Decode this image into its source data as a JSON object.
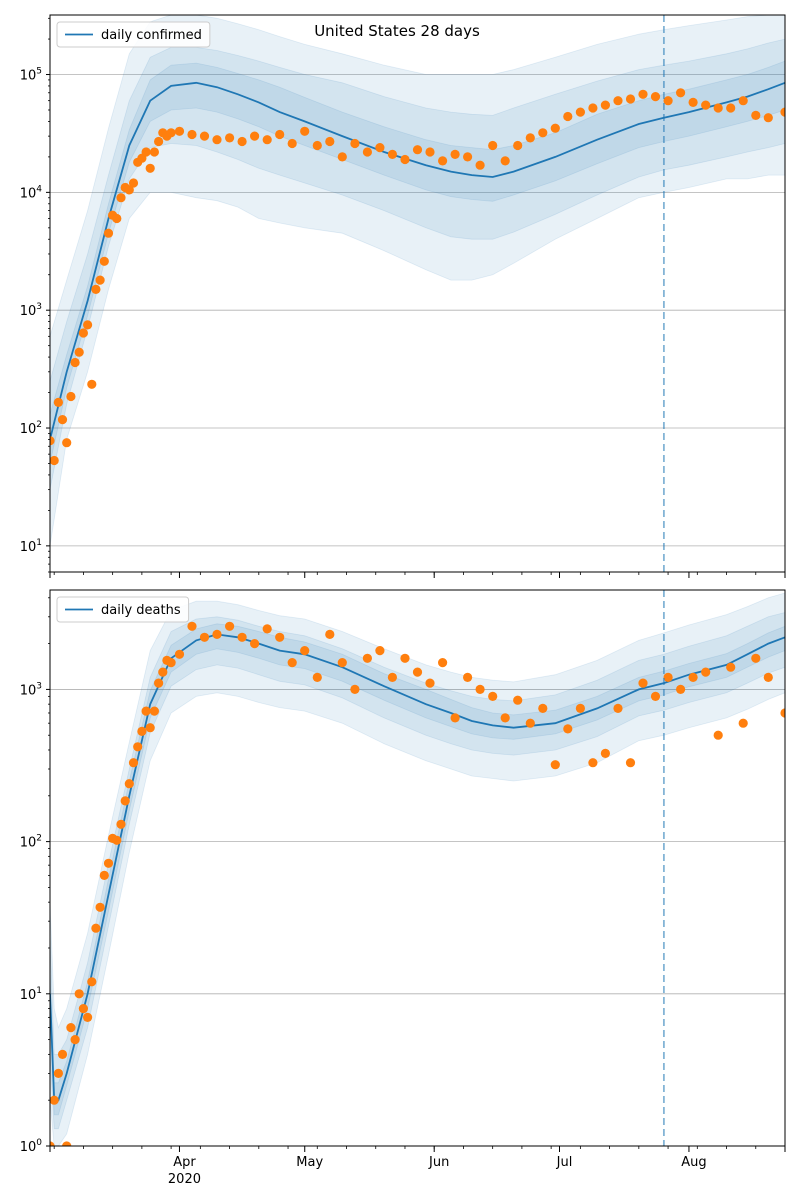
{
  "figure": {
    "title": "United States 28 days"
  },
  "chart_data": [
    {
      "type": "line",
      "name": "daily-confirmed",
      "y_scale": "log",
      "ylim": [
        6,
        320000
      ],
      "xlim": [
        "2020-03-01",
        "2020-08-24"
      ],
      "grid": "y-major",
      "legend": {
        "location": "top-left",
        "entries": [
          "daily confirmed"
        ]
      },
      "y_ticks": [
        {
          "value": 10,
          "base": "10",
          "exp": "1"
        },
        {
          "value": 100,
          "base": "10",
          "exp": "2"
        },
        {
          "value": 1000,
          "base": "10",
          "exp": "3"
        },
        {
          "value": 10000,
          "base": "10",
          "exp": "4"
        },
        {
          "value": 100000,
          "base": "10",
          "exp": "5"
        }
      ],
      "forecast_start": "2020-07-26",
      "fit": {
        "x": [
          "2020-03-01",
          "2020-03-05",
          "2020-03-10",
          "2020-03-15",
          "2020-03-20",
          "2020-03-25",
          "2020-03-30",
          "2020-04-05",
          "2020-04-10",
          "2020-04-15",
          "2020-04-20",
          "2020-04-25",
          "2020-05-01",
          "2020-05-10",
          "2020-05-20",
          "2020-05-30",
          "2020-06-05",
          "2020-06-10",
          "2020-06-15",
          "2020-06-20",
          "2020-06-30",
          "2020-07-10",
          "2020-07-20",
          "2020-07-26",
          "2020-08-01",
          "2020-08-10",
          "2020-08-15",
          "2020-08-20",
          "2020-08-24"
        ],
        "y": [
          80,
          300,
          1200,
          6000,
          25000,
          60000,
          80000,
          85000,
          78000,
          68000,
          58000,
          48000,
          40000,
          30000,
          22000,
          17000,
          15000,
          14000,
          13500,
          15000,
          20000,
          28000,
          38000,
          43000,
          48000,
          58000,
          65000,
          75000,
          85000
        ]
      },
      "band_outer": {
        "lower": [
          10,
          80,
          300,
          1500,
          6000,
          10000,
          10000,
          9000,
          8500,
          7500,
          6000,
          5500,
          5000,
          4500,
          3200,
          2200,
          1800,
          1800,
          2000,
          2500,
          4000,
          6000,
          9000,
          10000,
          11000,
          13000,
          13000,
          14000,
          14000
        ],
        "upper": [
          600,
          1800,
          7000,
          35000,
          150000,
          280000,
          320000,
          320000,
          300000,
          270000,
          240000,
          210000,
          180000,
          150000,
          120000,
          100000,
          100000,
          100000,
          100000,
          110000,
          140000,
          180000,
          220000,
          240000,
          260000,
          290000,
          310000,
          320000,
          320000
        ]
      },
      "band_middle": {
        "lower": [
          30,
          160,
          700,
          3500,
          13000,
          24000,
          26000,
          25000,
          22000,
          19000,
          16000,
          14000,
          12000,
          9500,
          7000,
          5000,
          4200,
          4000,
          4000,
          4600,
          6500,
          9500,
          13500,
          15500,
          17000,
          20000,
          22000,
          24000,
          26000
        ],
        "upper": [
          250,
          800,
          3000,
          14000,
          60000,
          140000,
          170000,
          170000,
          160000,
          145000,
          130000,
          115000,
          100000,
          85000,
          65000,
          52000,
          48000,
          46000,
          45000,
          52000,
          68000,
          88000,
          110000,
          120000,
          130000,
          150000,
          165000,
          185000,
          200000
        ]
      },
      "band_inner": {
        "lower": [
          50,
          220,
          900,
          4500,
          18000,
          40000,
          50000,
          52000,
          48000,
          42000,
          36000,
          30000,
          25000,
          19000,
          14000,
          10500,
          9200,
          8700,
          8400,
          9500,
          12500,
          17500,
          24000,
          27000,
          30000,
          36000,
          40000,
          45000,
          50000
        ],
        "upper": [
          130,
          420,
          1600,
          8000,
          34000,
          90000,
          120000,
          125000,
          115000,
          102000,
          90000,
          78000,
          64000,
          48000,
          36000,
          28000,
          25000,
          24000,
          23000,
          25000,
          32000,
          46000,
          60000,
          68000,
          75000,
          90000,
          100000,
          115000,
          130000
        ]
      },
      "observed": {
        "x": [
          "2020-03-01",
          "2020-03-02",
          "2020-03-03",
          "2020-03-04",
          "2020-03-05",
          "2020-03-06",
          "2020-03-07",
          "2020-03-08",
          "2020-03-09",
          "2020-03-10",
          "2020-03-11",
          "2020-03-12",
          "2020-03-13",
          "2020-03-14",
          "2020-03-15",
          "2020-03-16",
          "2020-03-17",
          "2020-03-18",
          "2020-03-19",
          "2020-03-20",
          "2020-03-21",
          "2020-03-22",
          "2020-03-23",
          "2020-03-24",
          "2020-03-25",
          "2020-03-26",
          "2020-03-27",
          "2020-03-28",
          "2020-03-29",
          "2020-03-30",
          "2020-04-01",
          "2020-04-04",
          "2020-04-07",
          "2020-04-10",
          "2020-04-13",
          "2020-04-16",
          "2020-04-19",
          "2020-04-22",
          "2020-04-25",
          "2020-04-28",
          "2020-05-01",
          "2020-05-04",
          "2020-05-07",
          "2020-05-10",
          "2020-05-13",
          "2020-05-16",
          "2020-05-19",
          "2020-05-22",
          "2020-05-25",
          "2020-05-28",
          "2020-05-31",
          "2020-06-03",
          "2020-06-06",
          "2020-06-09",
          "2020-06-12",
          "2020-06-15",
          "2020-06-18",
          "2020-06-21",
          "2020-06-24",
          "2020-06-27",
          "2020-06-30",
          "2020-07-03",
          "2020-07-06",
          "2020-07-09",
          "2020-07-12",
          "2020-07-15",
          "2020-07-18",
          "2020-07-21",
          "2020-07-24",
          "2020-07-27",
          "2020-07-30",
          "2020-08-02",
          "2020-08-05",
          "2020-08-08",
          "2020-08-11",
          "2020-08-14",
          "2020-08-17",
          "2020-08-20",
          "2020-08-24"
        ],
        "y": [
          78,
          53,
          165,
          118,
          75,
          185,
          360,
          440,
          640,
          750,
          235,
          1500,
          1800,
          2600,
          4500,
          6400,
          6000,
          9000,
          11000,
          10500,
          12000,
          18000,
          19500,
          22000,
          16000,
          22000,
          27000,
          32000,
          30000,
          32000,
          33000,
          31000,
          30000,
          28000,
          29000,
          27000,
          30000,
          28000,
          31000,
          26000,
          33000,
          25000,
          27000,
          20000,
          26000,
          22000,
          24000,
          21000,
          19000,
          23000,
          22000,
          18500,
          21000,
          20000,
          17000,
          25000,
          18500,
          25000,
          29000,
          32000,
          35000,
          44000,
          48000,
          52000,
          55000,
          60000,
          62000,
          68000,
          65000,
          60000,
          70000,
          58000,
          55000,
          52000,
          52000,
          60000,
          45000,
          43000,
          48000
        ]
      }
    },
    {
      "type": "line",
      "name": "daily-deaths",
      "y_scale": "log",
      "ylim": [
        1,
        4500
      ],
      "xlim": [
        "2020-03-01",
        "2020-08-24"
      ],
      "grid": "y-major",
      "legend": {
        "location": "top-left",
        "entries": [
          "daily deaths"
        ]
      },
      "y_ticks": [
        {
          "value": 1,
          "base": "10",
          "exp": "0"
        },
        {
          "value": 10,
          "base": "10",
          "exp": "1"
        },
        {
          "value": 100,
          "base": "10",
          "exp": "2"
        },
        {
          "value": 1000,
          "base": "10",
          "exp": "3"
        }
      ],
      "x_ticks": [
        {
          "date": "2020-04-01",
          "label": "Apr",
          "sublabel": "2020"
        },
        {
          "date": "2020-05-01",
          "label": "May",
          "sublabel": ""
        },
        {
          "date": "2020-06-01",
          "label": "Jun",
          "sublabel": ""
        },
        {
          "date": "2020-07-01",
          "label": "Jul",
          "sublabel": ""
        },
        {
          "date": "2020-08-01",
          "label": "Aug",
          "sublabel": ""
        }
      ],
      "forecast_start": "2020-07-26",
      "fit": {
        "x": [
          "2020-03-01",
          "2020-03-02",
          "2020-03-03",
          "2020-03-05",
          "2020-03-10",
          "2020-03-15",
          "2020-03-20",
          "2020-03-25",
          "2020-03-30",
          "2020-04-05",
          "2020-04-10",
          "2020-04-15",
          "2020-04-20",
          "2020-04-25",
          "2020-05-01",
          "2020-05-10",
          "2020-05-20",
          "2020-05-30",
          "2020-06-05",
          "2020-06-10",
          "2020-06-15",
          "2020-06-20",
          "2020-06-30",
          "2020-07-10",
          "2020-07-20",
          "2020-07-26",
          "2020-08-01",
          "2020-08-10",
          "2020-08-15",
          "2020-08-20",
          "2020-08-24"
        ],
        "y": [
          10,
          2,
          2,
          3,
          10,
          45,
          200,
          800,
          1600,
          2100,
          2300,
          2200,
          2000,
          1800,
          1700,
          1400,
          1050,
          800,
          700,
          620,
          580,
          560,
          600,
          750,
          1000,
          1100,
          1250,
          1450,
          1700,
          2000,
          2200
        ]
      },
      "band_outer": {
        "lower": [
          2,
          1,
          1,
          1.2,
          4,
          18,
          85,
          340,
          700,
          900,
          950,
          900,
          820,
          760,
          720,
          600,
          440,
          340,
          300,
          270,
          260,
          250,
          270,
          330,
          460,
          500,
          560,
          650,
          740,
          860,
          950
        ],
        "upper": [
          40,
          8,
          6,
          8,
          25,
          110,
          450,
          1800,
          3300,
          3800,
          3800,
          3600,
          3300,
          3050,
          2900,
          2400,
          1850,
          1450,
          1300,
          1200,
          1150,
          1120,
          1250,
          1550,
          2100,
          2350,
          2650,
          3100,
          3500,
          4000,
          4300
        ]
      },
      "band_middle": {
        "lower": [
          4,
          1.3,
          1.3,
          2,
          6,
          28,
          130,
          520,
          1050,
          1350,
          1450,
          1380,
          1250,
          1130,
          1070,
          880,
          650,
          500,
          440,
          400,
          380,
          370,
          400,
          490,
          670,
          730,
          820,
          950,
          1100,
          1280,
          1400
        ],
        "upper": [
          25,
          4,
          4,
          5,
          16,
          72,
          300,
          1200,
          2400,
          2900,
          3000,
          2850,
          2600,
          2400,
          2250,
          1850,
          1400,
          1100,
          980,
          900,
          860,
          840,
          920,
          1150,
          1550,
          1700,
          1920,
          2250,
          2600,
          3000,
          3200
        ]
      },
      "band_inner": {
        "lower": [
          7,
          1.6,
          1.6,
          2.5,
          8,
          35,
          160,
          650,
          1300,
          1700,
          1850,
          1750,
          1600,
          1450,
          1370,
          1130,
          850,
          650,
          570,
          510,
          480,
          470,
          510,
          630,
          840,
          920,
          1040,
          1200,
          1400,
          1630,
          1800
        ],
        "upper": [
          14,
          2.6,
          2.6,
          3.6,
          12,
          57,
          250,
          980,
          1950,
          2500,
          2700,
          2600,
          2400,
          2200,
          2050,
          1700,
          1270,
          1000,
          860,
          760,
          700,
          680,
          730,
          900,
          1200,
          1320,
          1480,
          1720,
          2000,
          2350,
          2600
        ]
      },
      "observed": {
        "x": [
          "2020-03-01",
          "2020-03-02",
          "2020-03-03",
          "2020-03-04",
          "2020-03-05",
          "2020-03-06",
          "2020-03-07",
          "2020-03-08",
          "2020-03-09",
          "2020-03-10",
          "2020-03-11",
          "2020-03-12",
          "2020-03-13",
          "2020-03-14",
          "2020-03-15",
          "2020-03-16",
          "2020-03-17",
          "2020-03-18",
          "2020-03-19",
          "2020-03-20",
          "2020-03-21",
          "2020-03-22",
          "2020-03-23",
          "2020-03-24",
          "2020-03-25",
          "2020-03-26",
          "2020-03-27",
          "2020-03-28",
          "2020-03-29",
          "2020-03-30",
          "2020-04-01",
          "2020-04-04",
          "2020-04-07",
          "2020-04-10",
          "2020-04-13",
          "2020-04-16",
          "2020-04-19",
          "2020-04-22",
          "2020-04-25",
          "2020-04-28",
          "2020-05-01",
          "2020-05-04",
          "2020-05-07",
          "2020-05-10",
          "2020-05-13",
          "2020-05-16",
          "2020-05-19",
          "2020-05-22",
          "2020-05-25",
          "2020-05-28",
          "2020-05-31",
          "2020-06-03",
          "2020-06-06",
          "2020-06-09",
          "2020-06-12",
          "2020-06-15",
          "2020-06-18",
          "2020-06-21",
          "2020-06-24",
          "2020-06-27",
          "2020-06-30",
          "2020-07-03",
          "2020-07-06",
          "2020-07-09",
          "2020-07-12",
          "2020-07-15",
          "2020-07-18",
          "2020-07-21",
          "2020-07-24",
          "2020-07-27",
          "2020-07-30",
          "2020-08-02",
          "2020-08-05",
          "2020-08-08",
          "2020-08-11",
          "2020-08-14",
          "2020-08-17",
          "2020-08-20",
          "2020-08-24"
        ],
        "y": [
          1,
          2,
          3,
          4,
          1,
          6,
          5,
          10,
          8,
          7,
          12,
          27,
          37,
          60,
          72,
          105,
          102,
          130,
          185,
          240,
          330,
          420,
          530,
          720,
          560,
          720,
          1100,
          1300,
          1550,
          1500,
          1700,
          2600,
          2200,
          2300,
          2600,
          2200,
          2000,
          2500,
          2200,
          1500,
          1800,
          1200,
          2300,
          1500,
          1000,
          1600,
          1800,
          1200,
          1600,
          1300,
          1100,
          1500,
          650,
          1200,
          1000,
          900,
          650,
          850,
          600,
          750,
          320,
          550,
          750,
          330,
          380,
          750,
          330,
          1100,
          900,
          1200,
          1000,
          1200,
          1300,
          500,
          1400,
          600,
          1600,
          1200,
          700
        ]
      }
    }
  ]
}
